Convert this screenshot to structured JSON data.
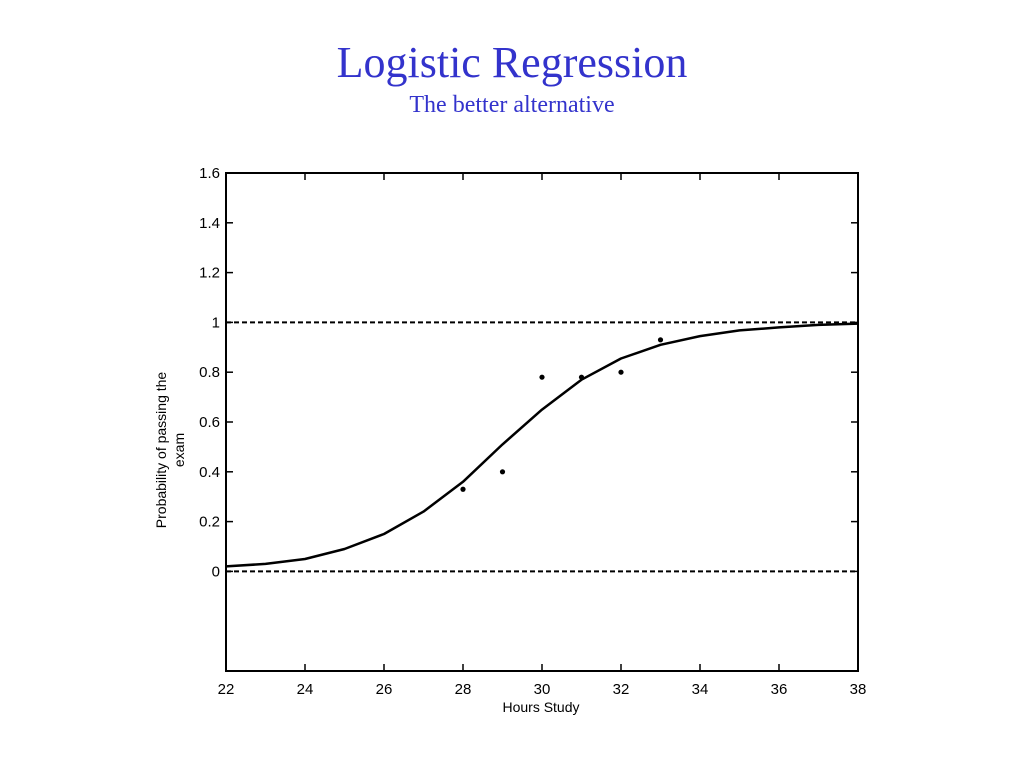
{
  "slide": {
    "title": "Logistic Regression",
    "subtitle": "The better alternative"
  },
  "chart_data": {
    "type": "line",
    "xlabel": "Hours Study",
    "ylabel_lines": [
      "Probability of passing the",
      "exam"
    ],
    "xlim": [
      22,
      38
    ],
    "ylim": [
      -0.4,
      1.6
    ],
    "xticks": [
      22,
      24,
      26,
      28,
      30,
      32,
      34,
      36,
      38
    ],
    "yticks": [
      0,
      0.2,
      0.4,
      0.6,
      0.8,
      1,
      1.2,
      1.4,
      1.6
    ],
    "ytick_labels": [
      "0",
      "0.2",
      "0.4",
      "0.6",
      "0.8",
      "1",
      "1.2",
      "1.4",
      "1.6"
    ],
    "grid": false,
    "reference_lines": [
      0,
      1
    ],
    "curve": {
      "x": [
        22,
        23,
        24,
        25,
        26,
        27,
        28,
        29,
        30,
        31,
        32,
        33,
        34,
        35,
        36,
        37,
        38
      ],
      "y": [
        0.02,
        0.03,
        0.05,
        0.09,
        0.15,
        0.24,
        0.36,
        0.51,
        0.65,
        0.77,
        0.855,
        0.91,
        0.945,
        0.968,
        0.98,
        0.99,
        0.995
      ]
    },
    "points": {
      "x": [
        28,
        29,
        30,
        31,
        32,
        33
      ],
      "y": [
        0.33,
        0.4,
        0.78,
        0.78,
        0.8,
        0.93
      ]
    }
  }
}
